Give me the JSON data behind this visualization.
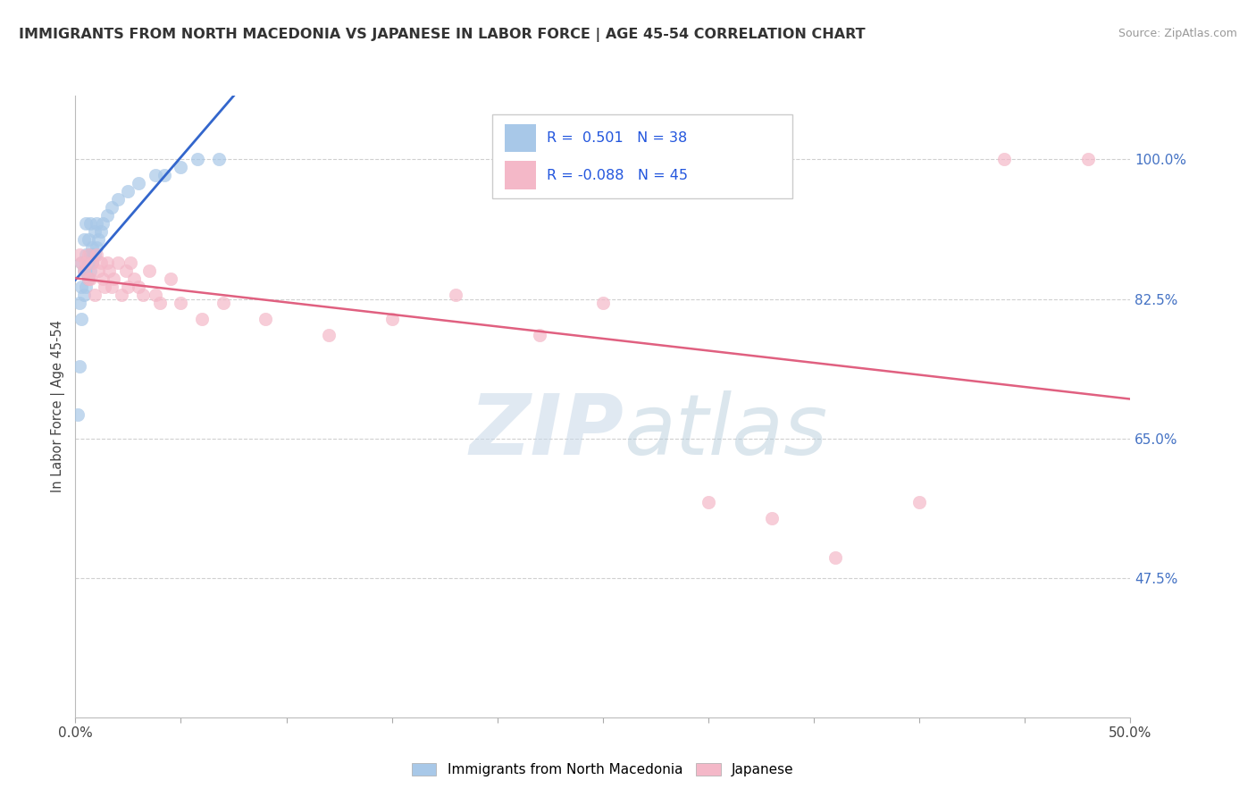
{
  "title": "IMMIGRANTS FROM NORTH MACEDONIA VS JAPANESE IN LABOR FORCE | AGE 45-54 CORRELATION CHART",
  "source": "Source: ZipAtlas.com",
  "ylabel": "In Labor Force | Age 45-54",
  "xlim": [
    0.0,
    0.5
  ],
  "ylim": [
    0.3,
    1.08
  ],
  "xtick_labels": [
    "0.0%",
    "",
    "",
    "",
    "",
    "",
    "",
    "",
    "",
    "50.0%"
  ],
  "xtick_vals": [
    0.0,
    0.05,
    0.1,
    0.15,
    0.2,
    0.25,
    0.3,
    0.35,
    0.4,
    0.5
  ],
  "ytick_labels": [
    "47.5%",
    "65.0%",
    "82.5%",
    "100.0%"
  ],
  "ytick_vals": [
    0.475,
    0.65,
    0.825,
    1.0
  ],
  "background_color": "#ffffff",
  "grid_color": "#d0d0d0",
  "blue_color": "#a8c8e8",
  "pink_color": "#f4b8c8",
  "blue_line_color": "#3366cc",
  "pink_line_color": "#e06080",
  "R_blue": 0.501,
  "N_blue": 38,
  "R_pink": -0.088,
  "N_pink": 45,
  "legend_label_blue": "Immigrants from North Macedonia",
  "legend_label_pink": "Japanese",
  "watermark_zip": "ZIP",
  "watermark_atlas": "atlas",
  "blue_x": [
    0.001,
    0.002,
    0.002,
    0.003,
    0.003,
    0.003,
    0.004,
    0.004,
    0.004,
    0.005,
    0.005,
    0.005,
    0.005,
    0.006,
    0.006,
    0.006,
    0.007,
    0.007,
    0.007,
    0.008,
    0.008,
    0.009,
    0.009,
    0.01,
    0.01,
    0.011,
    0.012,
    0.013,
    0.015,
    0.017,
    0.02,
    0.025,
    0.03,
    0.038,
    0.042,
    0.05,
    0.058,
    0.068
  ],
  "blue_y": [
    0.68,
    0.74,
    0.82,
    0.8,
    0.84,
    0.87,
    0.83,
    0.86,
    0.9,
    0.84,
    0.86,
    0.88,
    0.92,
    0.85,
    0.87,
    0.9,
    0.86,
    0.88,
    0.92,
    0.87,
    0.89,
    0.88,
    0.91,
    0.89,
    0.92,
    0.9,
    0.91,
    0.92,
    0.93,
    0.94,
    0.95,
    0.96,
    0.97,
    0.98,
    0.98,
    0.99,
    1.0,
    1.0
  ],
  "pink_x": [
    0.002,
    0.003,
    0.004,
    0.005,
    0.006,
    0.006,
    0.007,
    0.008,
    0.009,
    0.01,
    0.011,
    0.012,
    0.013,
    0.014,
    0.015,
    0.016,
    0.017,
    0.018,
    0.02,
    0.022,
    0.024,
    0.025,
    0.026,
    0.028,
    0.03,
    0.032,
    0.035,
    0.038,
    0.04,
    0.045,
    0.05,
    0.06,
    0.07,
    0.09,
    0.12,
    0.15,
    0.18,
    0.22,
    0.25,
    0.3,
    0.33,
    0.36,
    0.4,
    0.44,
    0.48
  ],
  "pink_y": [
    0.88,
    0.87,
    0.86,
    0.87,
    0.85,
    0.88,
    0.85,
    0.87,
    0.83,
    0.88,
    0.86,
    0.87,
    0.85,
    0.84,
    0.87,
    0.86,
    0.84,
    0.85,
    0.87,
    0.83,
    0.86,
    0.84,
    0.87,
    0.85,
    0.84,
    0.83,
    0.86,
    0.83,
    0.82,
    0.85,
    0.82,
    0.8,
    0.82,
    0.8,
    0.78,
    0.8,
    0.83,
    0.78,
    0.82,
    0.57,
    0.55,
    0.5,
    0.57,
    1.0,
    1.0
  ]
}
